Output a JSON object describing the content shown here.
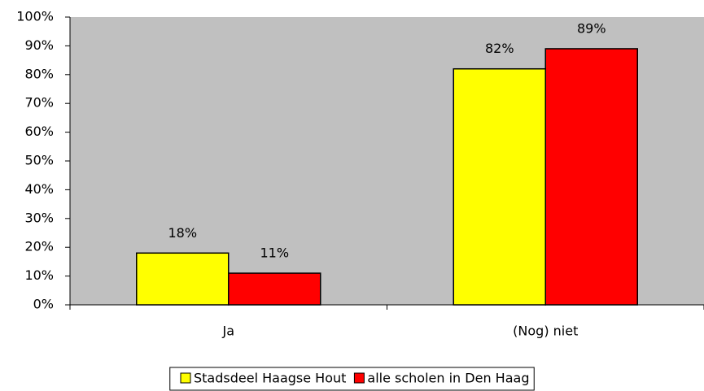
{
  "chart_data": {
    "type": "bar",
    "categories": [
      "Ja",
      "(Nog) niet"
    ],
    "series": [
      {
        "name": "Stadsdeel Haagse Hout",
        "color": "#ffff00",
        "values": [
          18,
          82
        ],
        "value_labels": [
          "18%",
          "82%"
        ]
      },
      {
        "name": "alle scholen in Den Haag",
        "color": "#ff0000",
        "values": [
          11,
          89
        ],
        "value_labels": [
          "11%",
          "89%"
        ]
      }
    ],
    "ylim": [
      0,
      100
    ],
    "yticks": [
      {
        "value": 0,
        "label": "0%"
      },
      {
        "value": 10,
        "label": "10%"
      },
      {
        "value": 20,
        "label": "20%"
      },
      {
        "value": 30,
        "label": "30%"
      },
      {
        "value": 40,
        "label": "40%"
      },
      {
        "value": 50,
        "label": "50%"
      },
      {
        "value": 60,
        "label": "60%"
      },
      {
        "value": 70,
        "label": "70%"
      },
      {
        "value": 80,
        "label": "80%"
      },
      {
        "value": 90,
        "label": "90%"
      },
      {
        "value": 100,
        "label": "100%"
      }
    ],
    "plot_background": "#c0c0c0",
    "legend": "bottom"
  }
}
